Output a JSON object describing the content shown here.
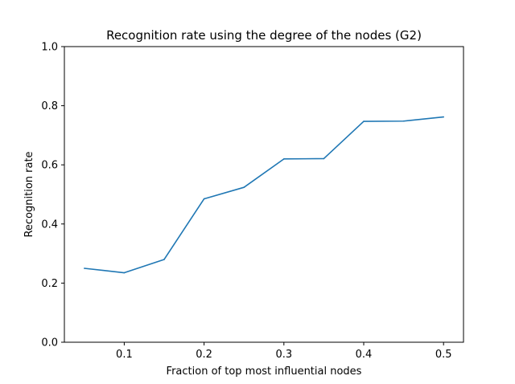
{
  "chart_data": {
    "type": "line",
    "title": "Recognition rate using the degree of the nodes (G2)",
    "xlabel": "Fraction of top most influential nodes",
    "ylabel": "Recognition rate",
    "xlim": [
      0.025,
      0.525
    ],
    "ylim": [
      0.0,
      1.0
    ],
    "xticks": [
      0.1,
      0.2,
      0.3,
      0.4,
      0.5
    ],
    "xtick_labels": [
      "0.1",
      "0.2",
      "0.3",
      "0.4",
      "0.5"
    ],
    "yticks": [
      0.0,
      0.2,
      0.4,
      0.6,
      0.8,
      1.0
    ],
    "ytick_labels": [
      "0.0",
      "0.2",
      "0.4",
      "0.6",
      "0.8",
      "1.0"
    ],
    "grid": false,
    "series": [
      {
        "color": "#1f77b4",
        "x": [
          0.05,
          0.1,
          0.15,
          0.2,
          0.25,
          0.3,
          0.35,
          0.4,
          0.45,
          0.5
        ],
        "y": [
          0.25,
          0.235,
          0.28,
          0.485,
          0.524,
          0.62,
          0.621,
          0.747,
          0.748,
          0.762
        ]
      }
    ]
  }
}
